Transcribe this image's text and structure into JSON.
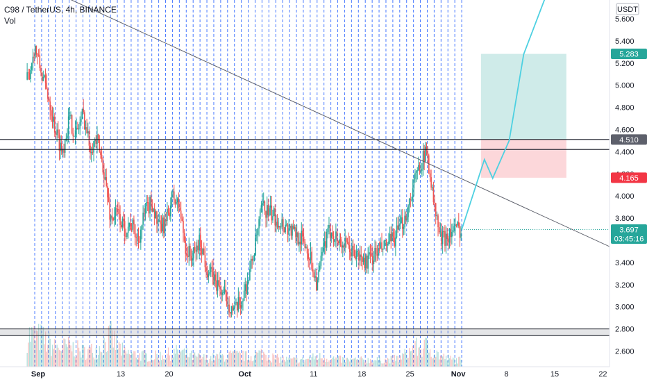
{
  "header": {
    "symbol": "C98 / TetherUS, 4h, BINANCE",
    "indicator": "Vol"
  },
  "colors": {
    "up": "#26a69a",
    "down": "#ef5350",
    "grid_dashed": "#2962ff",
    "profit_zone": "#26a69a",
    "loss_zone": "#f23645",
    "projection": "#4dd0e1",
    "level_line": "#131722",
    "current_price": "#26a69a",
    "badge_green": "#26a69a",
    "badge_red": "#f23645",
    "badge_gray": "#5d606b"
  },
  "chart_data": {
    "type": "candlestick",
    "currency_label": "USDT",
    "ylim": [
      2.5,
      5.7
    ],
    "y_ticks": [
      "5.600",
      "5.400",
      "5.200",
      "5.000",
      "4.800",
      "4.600",
      "4.400",
      "4.200",
      "4.000",
      "3.800",
      "3.600",
      "3.400",
      "3.200",
      "3.000",
      "2.800",
      "2.600"
    ],
    "x_ticks": [
      {
        "label": "Sep",
        "day": 0
      },
      {
        "label": "13",
        "day": 12
      },
      {
        "label": "20",
        "day": 19
      },
      {
        "label": "Oct",
        "day": 30
      },
      {
        "label": "11",
        "day": 40
      },
      {
        "label": "18",
        "day": 47
      },
      {
        "label": "25",
        "day": 54
      },
      {
        "label": "Nov",
        "day": 61
      },
      {
        "label": "8",
        "day": 68
      },
      {
        "label": "15",
        "day": 75
      },
      {
        "label": "22",
        "day": 82
      }
    ],
    "price_path": [
      [
        -1.5,
        5.05
      ],
      [
        -0.5,
        5.35
      ],
      [
        0.5,
        5.1
      ],
      [
        1.5,
        4.9
      ],
      [
        2.5,
        4.6
      ],
      [
        3.5,
        4.4
      ],
      [
        4.5,
        4.7
      ],
      [
        5.5,
        4.55
      ],
      [
        6.5,
        4.75
      ],
      [
        7.5,
        4.45
      ],
      [
        8.5,
        4.5
      ],
      [
        9.5,
        4.25
      ],
      [
        10.5,
        3.8
      ],
      [
        11.5,
        3.85
      ],
      [
        12.5,
        3.7
      ],
      [
        13.5,
        3.75
      ],
      [
        14.5,
        3.6
      ],
      [
        15.5,
        3.85
      ],
      [
        16.5,
        3.95
      ],
      [
        17.5,
        3.7
      ],
      [
        18.5,
        3.75
      ],
      [
        19.5,
        4.0
      ],
      [
        20.5,
        3.9
      ],
      [
        21.5,
        3.5
      ],
      [
        22.5,
        3.45
      ],
      [
        23.5,
        3.6
      ],
      [
        24.5,
        3.35
      ],
      [
        25.5,
        3.25
      ],
      [
        26.5,
        3.15
      ],
      [
        27.5,
        3.05
      ],
      [
        28.5,
        2.95
      ],
      [
        29.5,
        3.05
      ],
      [
        30.5,
        3.25
      ],
      [
        31.5,
        3.55
      ],
      [
        32.5,
        3.9
      ],
      [
        33.5,
        3.85
      ],
      [
        34.5,
        3.8
      ],
      [
        35.5,
        3.75
      ],
      [
        36.5,
        3.7
      ],
      [
        37.5,
        3.65
      ],
      [
        38.5,
        3.6
      ],
      [
        39.5,
        3.45
      ],
      [
        40.5,
        3.2
      ],
      [
        41.5,
        3.55
      ],
      [
        42.5,
        3.7
      ],
      [
        43.5,
        3.6
      ],
      [
        44.5,
        3.55
      ],
      [
        45.5,
        3.5
      ],
      [
        46.5,
        3.45
      ],
      [
        47.5,
        3.4
      ],
      [
        48.5,
        3.45
      ],
      [
        49.5,
        3.5
      ],
      [
        50.5,
        3.55
      ],
      [
        51.5,
        3.6
      ],
      [
        52.5,
        3.7
      ],
      [
        53.5,
        3.85
      ],
      [
        54.5,
        4.1
      ],
      [
        55.5,
        4.3
      ],
      [
        56.5,
        4.4
      ],
      [
        57.5,
        3.9
      ],
      [
        58.5,
        3.6
      ],
      [
        59.5,
        3.65
      ],
      [
        60.5,
        3.7
      ],
      [
        61.5,
        3.697
      ]
    ],
    "volume_path": [
      [
        -1.5,
        0.95
      ],
      [
        0.5,
        0.85
      ],
      [
        2.5,
        0.55
      ],
      [
        4.5,
        0.6
      ],
      [
        6.5,
        0.45
      ],
      [
        8.5,
        0.5
      ],
      [
        10.5,
        0.9
      ],
      [
        12.5,
        0.4
      ],
      [
        14.5,
        0.35
      ],
      [
        16.5,
        0.3
      ],
      [
        18.5,
        0.35
      ],
      [
        20.5,
        0.45
      ],
      [
        22.5,
        0.3
      ],
      [
        24.5,
        0.25
      ],
      [
        26.5,
        0.3
      ],
      [
        28.5,
        0.35
      ],
      [
        30.5,
        0.3
      ],
      [
        32.5,
        0.4
      ],
      [
        34.5,
        0.25
      ],
      [
        36.5,
        0.2
      ],
      [
        38.5,
        0.2
      ],
      [
        40.5,
        0.3
      ],
      [
        42.5,
        0.25
      ],
      [
        44.5,
        0.2
      ],
      [
        46.5,
        0.2
      ],
      [
        48.5,
        0.2
      ],
      [
        50.5,
        0.2
      ],
      [
        52.5,
        0.25
      ],
      [
        54.5,
        0.55
      ],
      [
        56.5,
        0.6
      ],
      [
        58.5,
        0.3
      ],
      [
        60.5,
        0.2
      ],
      [
        61.5,
        0.2
      ]
    ],
    "levels": [
      {
        "price": 4.51,
        "label": "4.510"
      },
      {
        "price": 4.42
      },
      {
        "price": 2.8
      },
      {
        "price": 2.74
      }
    ],
    "trendline": {
      "from": [
        -1.5,
        5.95
      ],
      "to": [
        88,
        3.4
      ]
    },
    "position": {
      "start_day": 64.3,
      "end_day": 76.7,
      "entry": 4.51,
      "target": 5.283,
      "stop": 4.165,
      "target_label": "5.283",
      "stop_label": "4.165"
    },
    "projection": [
      [
        61.5,
        3.697
      ],
      [
        64.8,
        4.33
      ],
      [
        66.0,
        4.16
      ],
      [
        68.4,
        4.5
      ],
      [
        70.5,
        5.28
      ],
      [
        74.0,
        5.85
      ]
    ],
    "current": {
      "price": 3.697,
      "label": "3.697",
      "countdown": "03:45:16"
    },
    "grid_vertical_every_days": 1
  }
}
